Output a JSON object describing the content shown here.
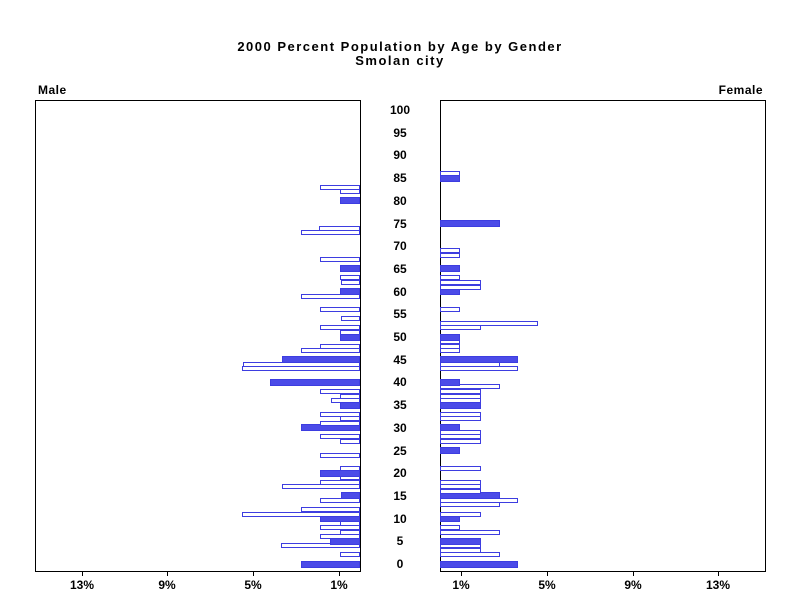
{
  "title": {
    "line1": "2000 Percent Population by Age by Gender",
    "line2": "Smolan city"
  },
  "panels": {
    "left_label": "Male",
    "right_label": "Female"
  },
  "colors": {
    "bar_fill": "#4b4be8",
    "bar_outline": "#3d3de0",
    "axis": "#000000",
    "background": "#ffffff"
  },
  "chart_data": {
    "type": "bar",
    "subtype": "population-pyramid",
    "title": "2000 Percent Population by Age by Gender",
    "subtitle": "Smolan city",
    "age_axis": {
      "min": 0,
      "max": 100,
      "tick_interval": 5,
      "tick_labels": [
        "0",
        "5",
        "10",
        "15",
        "20",
        "25",
        "30",
        "35",
        "40",
        "45",
        "50",
        "55",
        "60",
        "65",
        "70",
        "75",
        "80",
        "85",
        "90",
        "95",
        "100"
      ]
    },
    "pct_axis": {
      "tick_pcts": [
        1,
        5,
        9,
        13
      ],
      "tick_labels": [
        "1%",
        "5%",
        "9%",
        "13%"
      ],
      "max_pct": 15.2,
      "note": "male axis increases leftward, female axis increases rightward"
    },
    "legend": "solid bars = ages divisible by 5, hollow bars = other single ages",
    "series": [
      {
        "name": "Male",
        "side": "left",
        "points": [
          {
            "age": 0,
            "pct": 2.75,
            "solid": true
          },
          {
            "age": 2,
            "pct": 0.95,
            "solid": false
          },
          {
            "age": 4,
            "pct": 3.7,
            "solid": false
          },
          {
            "age": 5,
            "pct": 1.4,
            "solid": true
          },
          {
            "age": 6,
            "pct": 1.85,
            "solid": false
          },
          {
            "age": 7,
            "pct": 0.95,
            "solid": false
          },
          {
            "age": 8,
            "pct": 1.85,
            "solid": false
          },
          {
            "age": 9,
            "pct": 0.95,
            "solid": false
          },
          {
            "age": 10,
            "pct": 1.85,
            "solid": true
          },
          {
            "age": 11,
            "pct": 5.5,
            "solid": false
          },
          {
            "age": 12,
            "pct": 2.75,
            "solid": false
          },
          {
            "age": 14,
            "pct": 1.85,
            "solid": false
          },
          {
            "age": 15,
            "pct": 0.9,
            "solid": true
          },
          {
            "age": 17,
            "pct": 3.65,
            "solid": false
          },
          {
            "age": 18,
            "pct": 1.85,
            "solid": false
          },
          {
            "age": 19,
            "pct": 0.95,
            "solid": false
          },
          {
            "age": 20,
            "pct": 1.85,
            "solid": true
          },
          {
            "age": 21,
            "pct": 0.95,
            "solid": false
          },
          {
            "age": 24,
            "pct": 1.85,
            "solid": false
          },
          {
            "age": 27,
            "pct": 0.95,
            "solid": false
          },
          {
            "age": 28,
            "pct": 1.85,
            "solid": false
          },
          {
            "age": 30,
            "pct": 2.75,
            "solid": true
          },
          {
            "age": 31,
            "pct": 1.85,
            "solid": false
          },
          {
            "age": 32,
            "pct": 0.95,
            "solid": false
          },
          {
            "age": 33,
            "pct": 1.85,
            "solid": false
          },
          {
            "age": 35,
            "pct": 0.95,
            "solid": true
          },
          {
            "age": 36,
            "pct": 1.35,
            "solid": false
          },
          {
            "age": 37,
            "pct": 0.95,
            "solid": false
          },
          {
            "age": 38,
            "pct": 1.85,
            "solid": false
          },
          {
            "age": 40,
            "pct": 4.2,
            "solid": true
          },
          {
            "age": 43,
            "pct": 5.5,
            "solid": false
          },
          {
            "age": 44,
            "pct": 5.45,
            "solid": false
          },
          {
            "age": 45,
            "pct": 3.65,
            "solid": true
          },
          {
            "age": 47,
            "pct": 2.75,
            "solid": false
          },
          {
            "age": 48,
            "pct": 1.85,
            "solid": false
          },
          {
            "age": 50,
            "pct": 0.95,
            "solid": true
          },
          {
            "age": 51,
            "pct": 0.95,
            "solid": false
          },
          {
            "age": 52,
            "pct": 1.85,
            "solid": false
          },
          {
            "age": 54,
            "pct": 0.9,
            "solid": false
          },
          {
            "age": 56,
            "pct": 1.85,
            "solid": false
          },
          {
            "age": 59,
            "pct": 2.75,
            "solid": false
          },
          {
            "age": 60,
            "pct": 0.95,
            "solid": true
          },
          {
            "age": 62,
            "pct": 0.9,
            "solid": false
          },
          {
            "age": 63,
            "pct": 0.95,
            "solid": false
          },
          {
            "age": 65,
            "pct": 0.95,
            "solid": true
          },
          {
            "age": 67,
            "pct": 1.85,
            "solid": false
          },
          {
            "age": 73,
            "pct": 2.75,
            "solid": false
          },
          {
            "age": 74,
            "pct": 1.9,
            "solid": false
          },
          {
            "age": 80,
            "pct": 0.95,
            "solid": true
          },
          {
            "age": 82,
            "pct": 0.95,
            "solid": false
          },
          {
            "age": 83,
            "pct": 1.85,
            "solid": false
          }
        ]
      },
      {
        "name": "Female",
        "side": "right",
        "points": [
          {
            "age": 0,
            "pct": 3.65,
            "solid": true
          },
          {
            "age": 2,
            "pct": 2.8,
            "solid": false
          },
          {
            "age": 3,
            "pct": 1.9,
            "solid": false
          },
          {
            "age": 4,
            "pct": 1.9,
            "solid": false
          },
          {
            "age": 5,
            "pct": 1.9,
            "solid": true
          },
          {
            "age": 7,
            "pct": 2.8,
            "solid": false
          },
          {
            "age": 8,
            "pct": 0.95,
            "solid": false
          },
          {
            "age": 10,
            "pct": 0.95,
            "solid": true
          },
          {
            "age": 11,
            "pct": 1.9,
            "solid": false
          },
          {
            "age": 13,
            "pct": 2.8,
            "solid": false
          },
          {
            "age": 14,
            "pct": 3.65,
            "solid": false
          },
          {
            "age": 15,
            "pct": 2.8,
            "solid": true
          },
          {
            "age": 16,
            "pct": 1.9,
            "solid": false
          },
          {
            "age": 17,
            "pct": 1.9,
            "solid": false
          },
          {
            "age": 18,
            "pct": 1.9,
            "solid": false
          },
          {
            "age": 21,
            "pct": 1.9,
            "solid": false
          },
          {
            "age": 25,
            "pct": 0.95,
            "solid": true
          },
          {
            "age": 27,
            "pct": 1.9,
            "solid": false
          },
          {
            "age": 28,
            "pct": 1.9,
            "solid": false
          },
          {
            "age": 29,
            "pct": 1.9,
            "solid": false
          },
          {
            "age": 30,
            "pct": 0.95,
            "solid": true
          },
          {
            "age": 32,
            "pct": 1.9,
            "solid": false
          },
          {
            "age": 33,
            "pct": 1.9,
            "solid": false
          },
          {
            "age": 35,
            "pct": 1.9,
            "solid": true
          },
          {
            "age": 36,
            "pct": 1.9,
            "solid": false
          },
          {
            "age": 37,
            "pct": 1.9,
            "solid": false
          },
          {
            "age": 38,
            "pct": 1.9,
            "solid": false
          },
          {
            "age": 39,
            "pct": 2.8,
            "solid": false
          },
          {
            "age": 40,
            "pct": 0.95,
            "solid": true
          },
          {
            "age": 43,
            "pct": 3.65,
            "solid": false
          },
          {
            "age": 44,
            "pct": 2.8,
            "solid": false
          },
          {
            "age": 45,
            "pct": 3.65,
            "solid": true
          },
          {
            "age": 47,
            "pct": 0.95,
            "solid": false
          },
          {
            "age": 48,
            "pct": 0.95,
            "solid": false
          },
          {
            "age": 49,
            "pct": 0.95,
            "solid": false
          },
          {
            "age": 50,
            "pct": 0.95,
            "solid": true
          },
          {
            "age": 52,
            "pct": 1.9,
            "solid": false
          },
          {
            "age": 53,
            "pct": 4.6,
            "solid": false
          },
          {
            "age": 56,
            "pct": 0.95,
            "solid": false
          },
          {
            "age": 60,
            "pct": 0.95,
            "solid": true
          },
          {
            "age": 61,
            "pct": 1.9,
            "solid": false
          },
          {
            "age": 62,
            "pct": 1.9,
            "solid": false
          },
          {
            "age": 63,
            "pct": 0.95,
            "solid": false
          },
          {
            "age": 65,
            "pct": 0.95,
            "solid": true
          },
          {
            "age": 68,
            "pct": 0.95,
            "solid": false
          },
          {
            "age": 69,
            "pct": 0.95,
            "solid": false
          },
          {
            "age": 75,
            "pct": 2.8,
            "solid": true
          },
          {
            "age": 85,
            "pct": 0.95,
            "solid": true
          },
          {
            "age": 86,
            "pct": 0.95,
            "solid": false
          }
        ]
      }
    ]
  }
}
